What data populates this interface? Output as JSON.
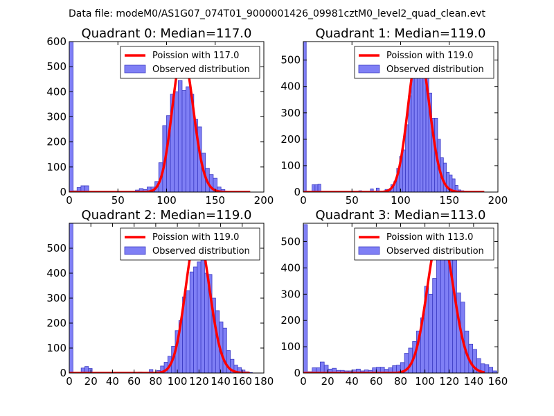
{
  "suptitle": "Data file: modeM0/AS1G07_074T01_9000001426_09981cztM0_level2_quad_clean.evt",
  "colors": {
    "hist_fill": "#7f7ff5",
    "hist_edge": "#3b3bc4",
    "poisson": "#ff0000",
    "axes": "#000000"
  },
  "chart_data": [
    {
      "type": "bar",
      "title": "Quadrant 0: Median=117.0",
      "legend_position": "top-right",
      "legend": {
        "line": "Poission with 117.0",
        "bars": "Observed distribution"
      },
      "xlim": [
        0,
        200
      ],
      "ylim": [
        0,
        600
      ],
      "xticks": [
        0,
        50,
        100,
        150,
        200
      ],
      "yticks": [
        0,
        100,
        200,
        300,
        400,
        500,
        600
      ],
      "median": 117,
      "peak": 550,
      "bin_width": 4,
      "bins": [
        [
          0,
          600
        ],
        [
          4,
          5
        ],
        [
          8,
          18
        ],
        [
          12,
          25
        ],
        [
          16,
          25
        ],
        [
          68,
          8
        ],
        [
          72,
          14
        ],
        [
          76,
          10
        ],
        [
          80,
          20
        ],
        [
          84,
          20
        ],
        [
          88,
          42
        ],
        [
          92,
          117
        ],
        [
          96,
          265
        ],
        [
          100,
          305
        ],
        [
          104,
          390
        ],
        [
          108,
          400
        ],
        [
          112,
          445
        ],
        [
          116,
          405
        ],
        [
          120,
          420
        ],
        [
          124,
          390
        ],
        [
          128,
          290
        ],
        [
          132,
          260
        ],
        [
          136,
          155
        ],
        [
          140,
          95
        ],
        [
          144,
          70
        ],
        [
          148,
          55
        ],
        [
          152,
          20
        ],
        [
          156,
          10
        ],
        [
          160,
          3
        ],
        [
          164,
          2
        ]
      ]
    },
    {
      "type": "bar",
      "title": "Quadrant 1: Median=119.0",
      "legend_position": "top-right",
      "legend": {
        "line": "Poission with 119.0",
        "bars": "Observed distribution"
      },
      "xlim": [
        0,
        200
      ],
      "ylim": [
        0,
        570
      ],
      "xticks": [
        0,
        50,
        100,
        150,
        200
      ],
      "yticks": [
        0,
        100,
        200,
        300,
        400,
        500
      ],
      "median": 119,
      "peak": 540,
      "bin_width": 3,
      "bins": [
        [
          0,
          570
        ],
        [
          9,
          28
        ],
        [
          12,
          28
        ],
        [
          15,
          30
        ],
        [
          57,
          5
        ],
        [
          69,
          12
        ],
        [
          75,
          15
        ],
        [
          84,
          10
        ],
        [
          87,
          5
        ],
        [
          90,
          28
        ],
        [
          93,
          40
        ],
        [
          96,
          90
        ],
        [
          99,
          135
        ],
        [
          102,
          160
        ],
        [
          105,
          255
        ],
        [
          108,
          365
        ],
        [
          111,
          470
        ],
        [
          114,
          500
        ],
        [
          117,
          440
        ],
        [
          120,
          540
        ],
        [
          123,
          435
        ],
        [
          126,
          480
        ],
        [
          129,
          375
        ],
        [
          132,
          280
        ],
        [
          135,
          280
        ],
        [
          138,
          200
        ],
        [
          141,
          130
        ],
        [
          144,
          110
        ],
        [
          147,
          75
        ],
        [
          150,
          65
        ],
        [
          153,
          50
        ],
        [
          156,
          25
        ],
        [
          159,
          8
        ],
        [
          162,
          5
        ],
        [
          165,
          3
        ]
      ]
    },
    {
      "type": "bar",
      "title": "Quadrant 2: Median=119.0",
      "legend_position": "top-right",
      "legend": {
        "line": "Poission with 119.0",
        "bars": "Observed distribution"
      },
      "xlim": [
        0,
        180
      ],
      "ylim": [
        0,
        600
      ],
      "xticks": [
        0,
        20,
        40,
        60,
        80,
        100,
        120,
        140,
        160,
        180
      ],
      "yticks": [
        0,
        100,
        200,
        300,
        400,
        500
      ],
      "median": 119,
      "peak": 565,
      "bin_width": 3.4,
      "bins": [
        [
          0,
          600
        ],
        [
          11,
          20
        ],
        [
          14.4,
          26
        ],
        [
          17.8,
          18
        ],
        [
          64,
          4
        ],
        [
          74,
          14
        ],
        [
          81,
          10
        ],
        [
          84.4,
          28
        ],
        [
          87.8,
          43
        ],
        [
          91.2,
          67
        ],
        [
          94.6,
          107
        ],
        [
          98,
          170
        ],
        [
          101.4,
          210
        ],
        [
          104.8,
          305
        ],
        [
          108.2,
          330
        ],
        [
          111.6,
          405
        ],
        [
          115,
          425
        ],
        [
          118.4,
          445
        ],
        [
          121.8,
          550
        ],
        [
          125.2,
          400
        ],
        [
          128.6,
          395
        ],
        [
          132,
          300
        ],
        [
          135.4,
          250
        ],
        [
          138.8,
          205
        ],
        [
          142.2,
          180
        ],
        [
          145.6,
          90
        ],
        [
          149,
          55
        ],
        [
          152.4,
          32
        ],
        [
          155.8,
          22
        ],
        [
          159.2,
          12
        ],
        [
          162.6,
          5
        ],
        [
          166,
          2
        ]
      ]
    },
    {
      "type": "bar",
      "title": "Quadrant 3: Median=113.0",
      "legend_position": "top-right",
      "legend": {
        "line": "Poission with 113.0",
        "bars": "Observed distribution"
      },
      "xlim": [
        0,
        160
      ],
      "ylim": [
        0,
        570
      ],
      "xticks": [
        0,
        20,
        40,
        60,
        80,
        100,
        120,
        140,
        160
      ],
      "yticks": [
        0,
        100,
        200,
        300,
        400,
        500
      ],
      "median": 113,
      "peak": 540,
      "bin_width": 3.3,
      "bins": [
        [
          0,
          565
        ],
        [
          4,
          5
        ],
        [
          7.3,
          20
        ],
        [
          10.6,
          20
        ],
        [
          13.9,
          42
        ],
        [
          17.2,
          30
        ],
        [
          20.5,
          15
        ],
        [
          23.8,
          18
        ],
        [
          27.1,
          10
        ],
        [
          30.4,
          10
        ],
        [
          33.7,
          8
        ],
        [
          37,
          8
        ],
        [
          40.3,
          12
        ],
        [
          43.6,
          15
        ],
        [
          46.9,
          8
        ],
        [
          50.2,
          12
        ],
        [
          53.5,
          10
        ],
        [
          56.8,
          20
        ],
        [
          60.1,
          22
        ],
        [
          63.4,
          22
        ],
        [
          66.7,
          14
        ],
        [
          70,
          20
        ],
        [
          73.3,
          28
        ],
        [
          76.6,
          30
        ],
        [
          79.9,
          40
        ],
        [
          83.2,
          75
        ],
        [
          86.5,
          95
        ],
        [
          89.8,
          120
        ],
        [
          93.1,
          160
        ],
        [
          96.4,
          210
        ],
        [
          99.7,
          330
        ],
        [
          103,
          300
        ],
        [
          106.3,
          360
        ],
        [
          109.6,
          445
        ],
        [
          112.9,
          475
        ],
        [
          116.2,
          455
        ],
        [
          119.5,
          455
        ],
        [
          122.8,
          435
        ],
        [
          126.1,
          305
        ],
        [
          129.4,
          270
        ],
        [
          132.7,
          160
        ],
        [
          136,
          110
        ],
        [
          139.3,
          90
        ],
        [
          142.6,
          55
        ],
        [
          145.9,
          35
        ],
        [
          149.2,
          32
        ],
        [
          152.5,
          22
        ],
        [
          155.8,
          8
        ]
      ]
    }
  ]
}
